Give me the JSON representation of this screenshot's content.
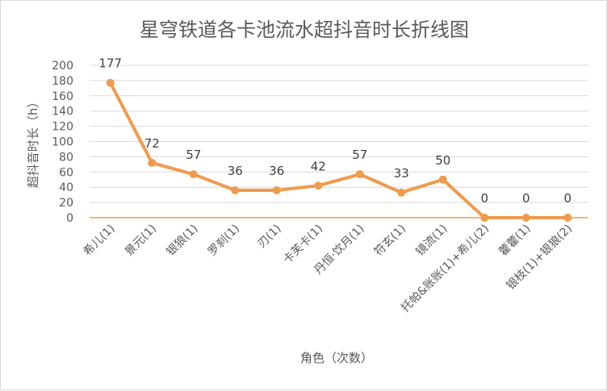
{
  "chart_data": {
    "type": "line",
    "title": "星穹铁道各卡池流水超抖音时长折线图",
    "xlabel": "角色（次数）",
    "ylabel": "超抖音时长（h）",
    "ylim": [
      0,
      200
    ],
    "yticks": [
      0,
      20,
      40,
      60,
      80,
      100,
      120,
      140,
      160,
      180,
      200
    ],
    "grid": true,
    "legend": "none",
    "categories": [
      "希儿(1)",
      "景元(1)",
      "银狼(1)",
      "罗刹(1)",
      "刃(1)",
      "卡芙卡(1)",
      "丹恒·饮月(1)",
      "符玄(1)",
      "镜流(1)",
      "托帕&账账(1)+希儿(2)",
      "藿藿(1)",
      "银枝(1)+银狼(2)"
    ],
    "series": [
      {
        "values": [
          177,
          72,
          57,
          36,
          36,
          42,
          57,
          33,
          50,
          0,
          0,
          0
        ]
      }
    ],
    "colors": {
      "line": "#F09A4D",
      "zero_line": "#E8A34A",
      "grid": "#d9d9d9",
      "text": "#595959"
    }
  }
}
